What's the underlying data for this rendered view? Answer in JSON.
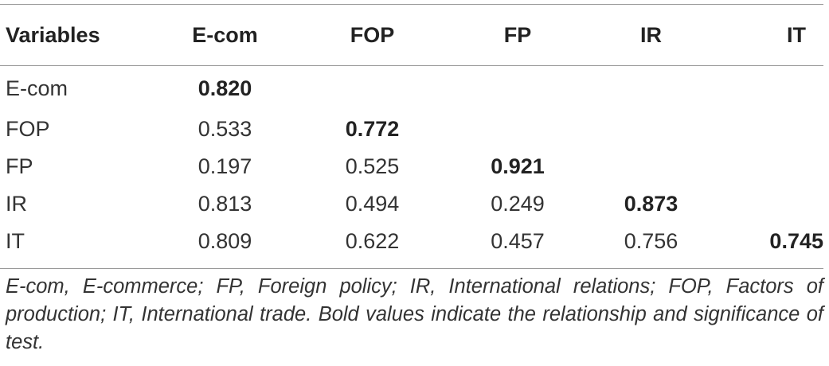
{
  "table": {
    "headers": [
      "Variables",
      "E-com",
      "FOP",
      "FP",
      "IR",
      "IT"
    ],
    "rows": [
      {
        "label": "E-com",
        "values": [
          "0.820",
          "",
          "",
          "",
          ""
        ]
      },
      {
        "label": "FOP",
        "values": [
          "0.533",
          "0.772",
          "",
          "",
          ""
        ]
      },
      {
        "label": "FP",
        "values": [
          "0.197",
          "0.525",
          "0.921",
          "",
          ""
        ]
      },
      {
        "label": "IR",
        "values": [
          "0.813",
          "0.494",
          "0.249",
          "0.873",
          ""
        ]
      },
      {
        "label": "IT",
        "values": [
          "0.809",
          "0.622",
          "0.457",
          "0.756",
          "0.745"
        ]
      }
    ]
  },
  "footnote": "E-com, E-commerce; FP, Foreign policy; IR, International relations; FOP, Factors of production; IT, International trade. Bold values indicate the relationship and significance of test."
}
